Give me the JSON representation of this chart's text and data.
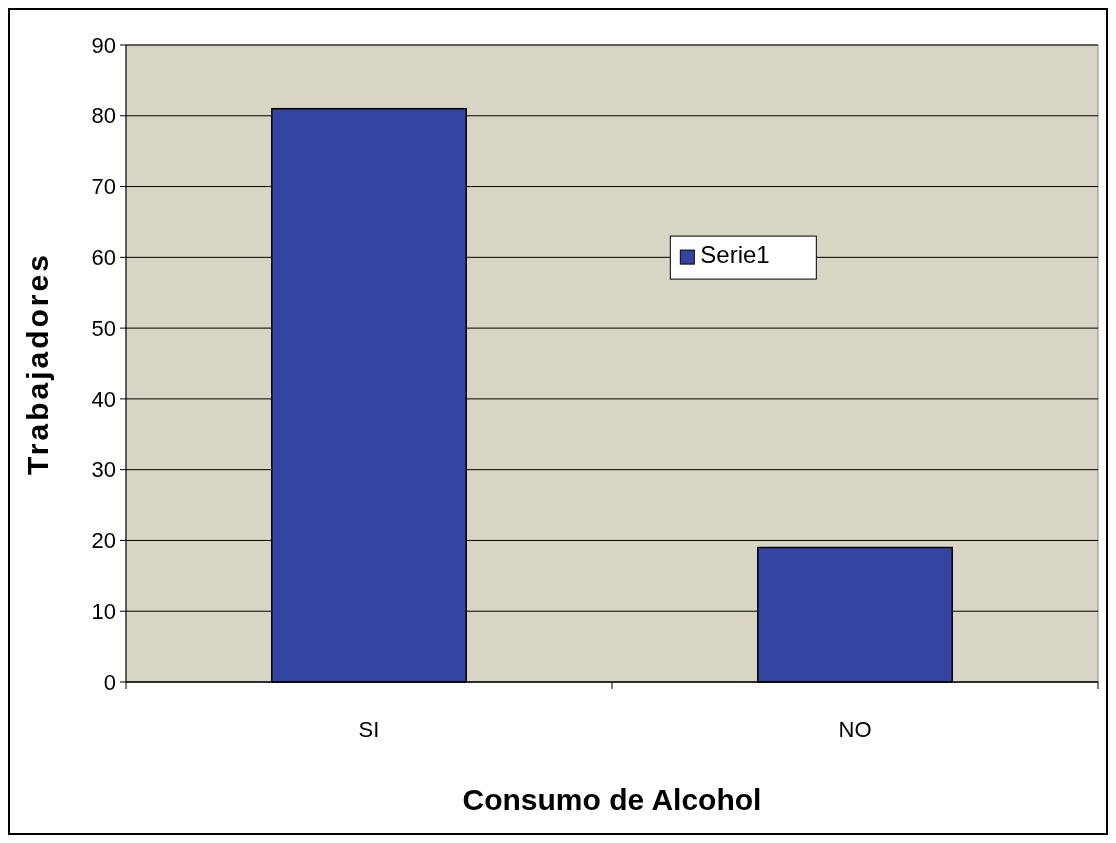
{
  "chart_data": {
    "type": "bar",
    "xlabel": "Consumo de Alcohol",
    "ylabel": "Trabajadores",
    "categories": [
      "SI",
      "NO"
    ],
    "series": [
      {
        "name": "Serie1",
        "color": "#3345a0",
        "values": [
          81,
          19
        ]
      }
    ],
    "ylim": [
      0,
      90
    ],
    "yticks": [
      0,
      10,
      20,
      30,
      40,
      50,
      60,
      70,
      80,
      90
    ],
    "grid": "y",
    "legend": "right"
  }
}
